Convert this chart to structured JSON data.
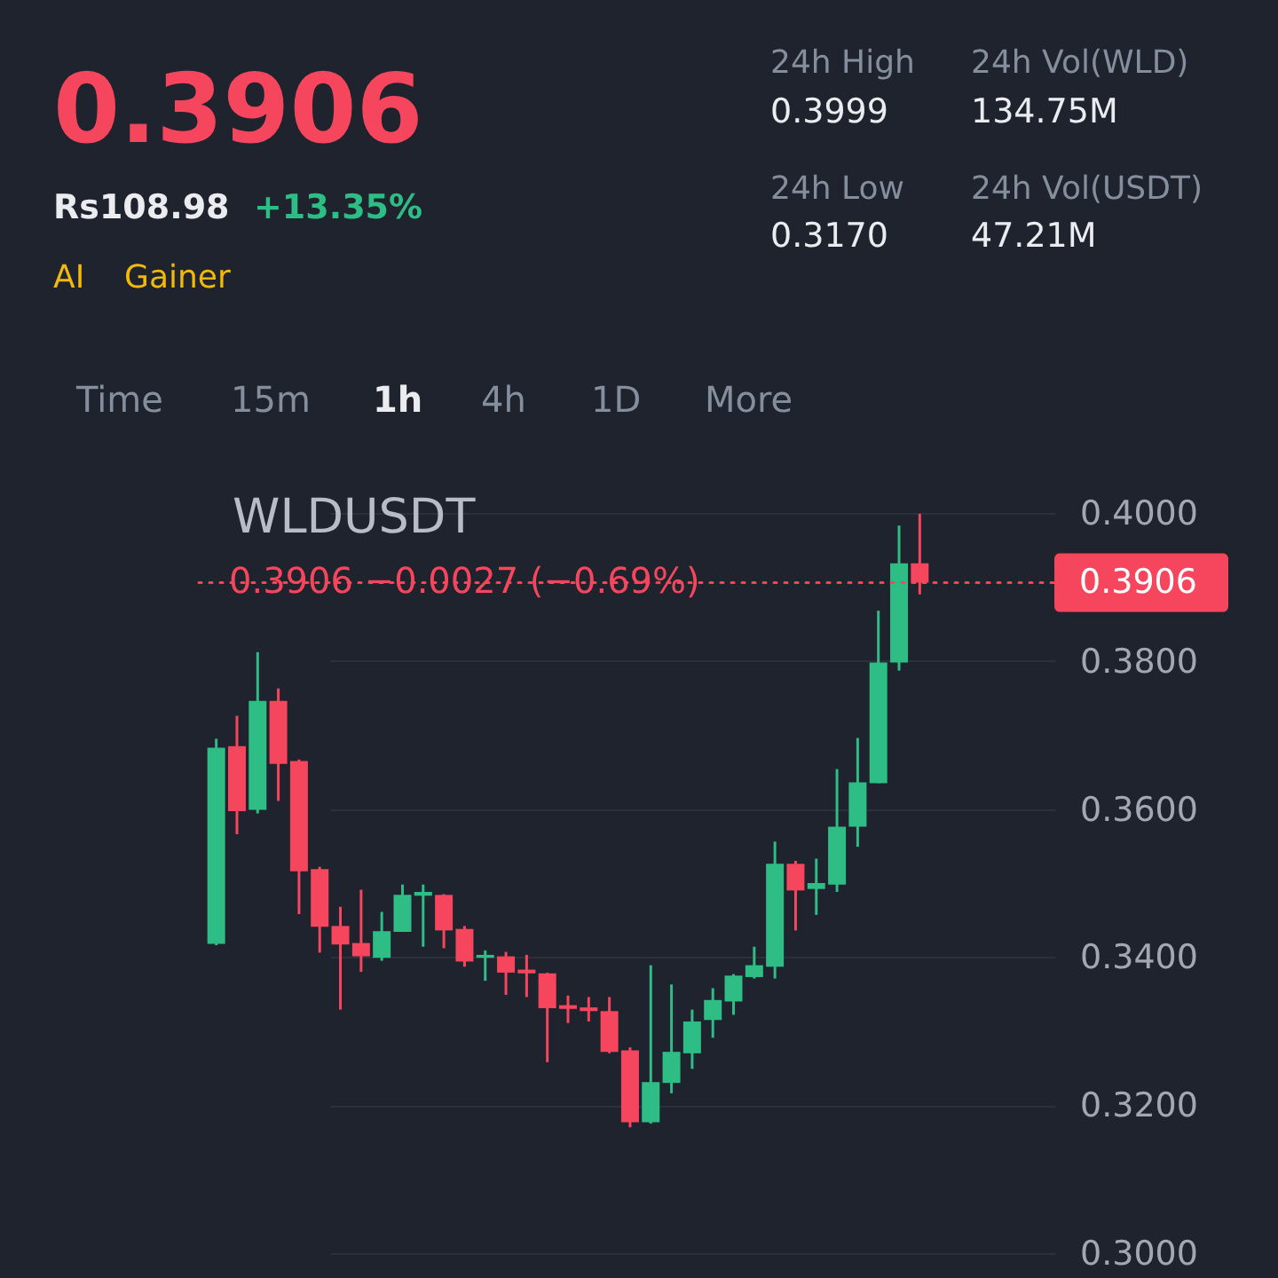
{
  "chart_data": {
    "type": "candlestick",
    "title": "WLDUSDT",
    "categories": [
      null,
      null,
      null,
      null,
      null,
      null,
      null,
      null,
      null,
      null,
      null,
      null,
      null,
      null,
      null,
      null,
      null,
      null,
      null,
      null,
      null,
      null,
      null,
      null,
      null,
      null,
      null,
      null,
      null,
      null,
      null,
      null,
      null,
      null,
      null
    ],
    "ohlc": [
      [
        0.3418,
        0.3695,
        0.3416,
        0.3683
      ],
      [
        0.3685,
        0.3726,
        0.3566,
        0.3597
      ],
      [
        0.3599,
        0.3812,
        0.3594,
        0.3746
      ],
      [
        0.3746,
        0.3763,
        0.3611,
        0.3661
      ],
      [
        0.3665,
        0.3667,
        0.3458,
        0.3516
      ],
      [
        0.3519,
        0.3522,
        0.3406,
        0.3441
      ],
      [
        0.3442,
        0.3468,
        0.3329,
        0.3417
      ],
      [
        0.3419,
        0.3491,
        0.338,
        0.3401
      ],
      [
        0.3399,
        0.3461,
        0.3395,
        0.3435
      ],
      [
        0.3434,
        0.3498,
        0.3434,
        0.3484
      ],
      [
        0.3483,
        0.3498,
        0.3414,
        0.3488
      ],
      [
        0.3484,
        0.3485,
        0.3412,
        0.3436
      ],
      [
        0.3438,
        0.3442,
        0.3387,
        0.3394
      ],
      [
        0.3399,
        0.3409,
        0.3368,
        0.3403
      ],
      [
        0.3401,
        0.3407,
        0.3349,
        0.3379
      ],
      [
        0.3383,
        0.3403,
        0.3346,
        0.3378
      ],
      [
        0.3378,
        0.3379,
        0.3258,
        0.3331
      ],
      [
        0.3335,
        0.3348,
        0.3311,
        0.333
      ],
      [
        0.3332,
        0.3346,
        0.3313,
        0.3327
      ],
      [
        0.3327,
        0.3346,
        0.327,
        0.3272
      ],
      [
        0.3274,
        0.3278,
        0.317,
        0.3177
      ],
      [
        0.3177,
        0.3389,
        0.3175,
        0.3231
      ],
      [
        0.323,
        0.3363,
        0.3216,
        0.3272
      ],
      [
        0.327,
        0.3329,
        0.3249,
        0.3313
      ],
      [
        0.3315,
        0.3358,
        0.3291,
        0.3342
      ],
      [
        0.334,
        0.3377,
        0.3322,
        0.3375
      ],
      [
        0.3373,
        0.3414,
        0.3371,
        0.3389
      ],
      [
        0.3387,
        0.3556,
        0.3371,
        0.3526
      ],
      [
        0.3526,
        0.353,
        0.3436,
        0.349
      ],
      [
        0.3492,
        0.3533,
        0.3457,
        0.35
      ],
      [
        0.3498,
        0.3654,
        0.3488,
        0.3576
      ],
      [
        0.3576,
        0.3696,
        0.3549,
        0.3636
      ],
      [
        0.3635,
        0.3868,
        0.3635,
        0.3798
      ],
      [
        0.3798,
        0.3983,
        0.3787,
        0.3932
      ],
      [
        0.3932,
        0.3999,
        0.389,
        0.3906
      ]
    ],
    "colors": [
      "#2ebd85",
      "#f6465d",
      "#2ebd85",
      "#f6465d",
      "#f6465d",
      "#f6465d",
      "#f6465d",
      "#f6465d",
      "#2ebd85",
      "#2ebd85",
      "#2ebd85",
      "#f6465d",
      "#f6465d",
      "#2ebd85",
      "#f6465d",
      "#f6465d",
      "#f6465d",
      "#f6465d",
      "#f6465d",
      "#f6465d",
      "#f6465d",
      "#2ebd85",
      "#2ebd85",
      "#2ebd85",
      "#2ebd85",
      "#2ebd85",
      "#2ebd85",
      "#2ebd85",
      "#f6465d",
      "#2ebd85",
      "#2ebd85",
      "#2ebd85",
      "#2ebd85",
      "#2ebd85",
      "#f6465d"
    ],
    "ylim": [
      0.3,
      0.4
    ],
    "yticks": [
      {
        "value": 0.3,
        "label": "0.3000"
      },
      {
        "value": 0.32,
        "label": "0.3200"
      },
      {
        "value": 0.34,
        "label": "0.3400"
      },
      {
        "value": 0.36,
        "label": "0.3600"
      },
      {
        "value": 0.38,
        "label": "0.3800"
      },
      {
        "value": 0.4,
        "label": "0.4000"
      }
    ],
    "grid": "y",
    "tick_labels": "y",
    "ref_lines": [
      {
        "axis": "y",
        "value": 0.3906,
        "label": "0.3906 −0.0027 (−0.69%)",
        "color": "#f6465d",
        "line_style": "dotted"
      }
    ],
    "annotations": [
      "0.3906",
      "Rs108.98",
      "+13.35%",
      "AI",
      "Gainer",
      "24h High",
      "0.3999",
      "24h Low",
      "0.3170",
      "24h Vol(WLD)",
      "134.75M",
      "24h Vol(USDT)",
      "47.21M",
      "Time",
      "15m",
      "1h",
      "4h",
      "1D",
      "More",
      "0.3906"
    ]
  }
}
